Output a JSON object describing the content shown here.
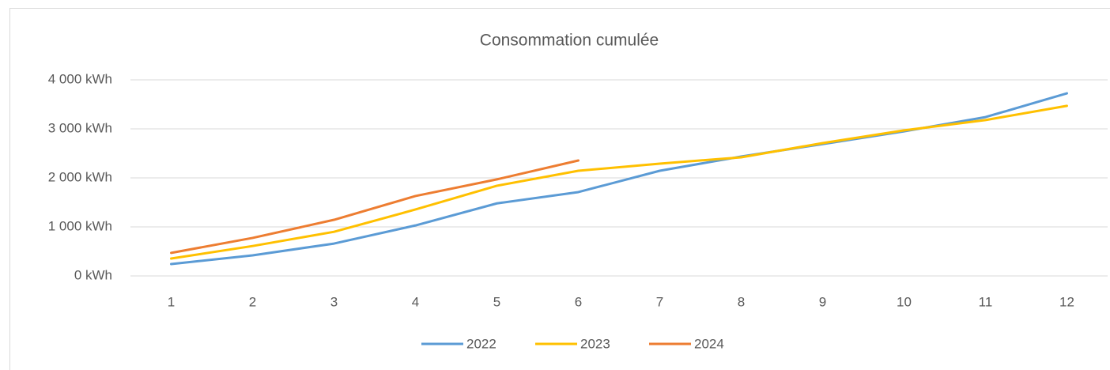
{
  "chart_data": {
    "type": "line",
    "title": "Consommation cumulée",
    "categories": [
      "1",
      "2",
      "3",
      "4",
      "5",
      "6",
      "7",
      "8",
      "9",
      "10",
      "11",
      "12"
    ],
    "series": [
      {
        "name": "2022",
        "color": "#5b9bd5",
        "values": [
          242,
          420,
          660,
          1030,
          1480,
          1710,
          2145,
          2435,
          2690,
          2950,
          3240,
          3725
        ]
      },
      {
        "name": "2023",
        "color": "#ffc000",
        "values": [
          355,
          610,
          900,
          1355,
          1840,
          2145,
          2290,
          2420,
          2710,
          2970,
          3180,
          3470
        ]
      },
      {
        "name": "2024",
        "color": "#ed7d31",
        "values": [
          470,
          775,
          1145,
          1630,
          1970,
          2355,
          null,
          null,
          null,
          null,
          null,
          null
        ]
      }
    ],
    "ylim": [
      0,
      4000
    ],
    "yticks": [
      {
        "value": 0,
        "label": "0 kWh"
      },
      {
        "value": 1000,
        "label": "1 000 kWh"
      },
      {
        "value": 2000,
        "label": "2 000 kWh"
      },
      {
        "value": 3000,
        "label": "3 000 kWh"
      },
      {
        "value": 4000,
        "label": "4 000 kWh"
      }
    ],
    "grid": true,
    "legend": "bottom"
  }
}
